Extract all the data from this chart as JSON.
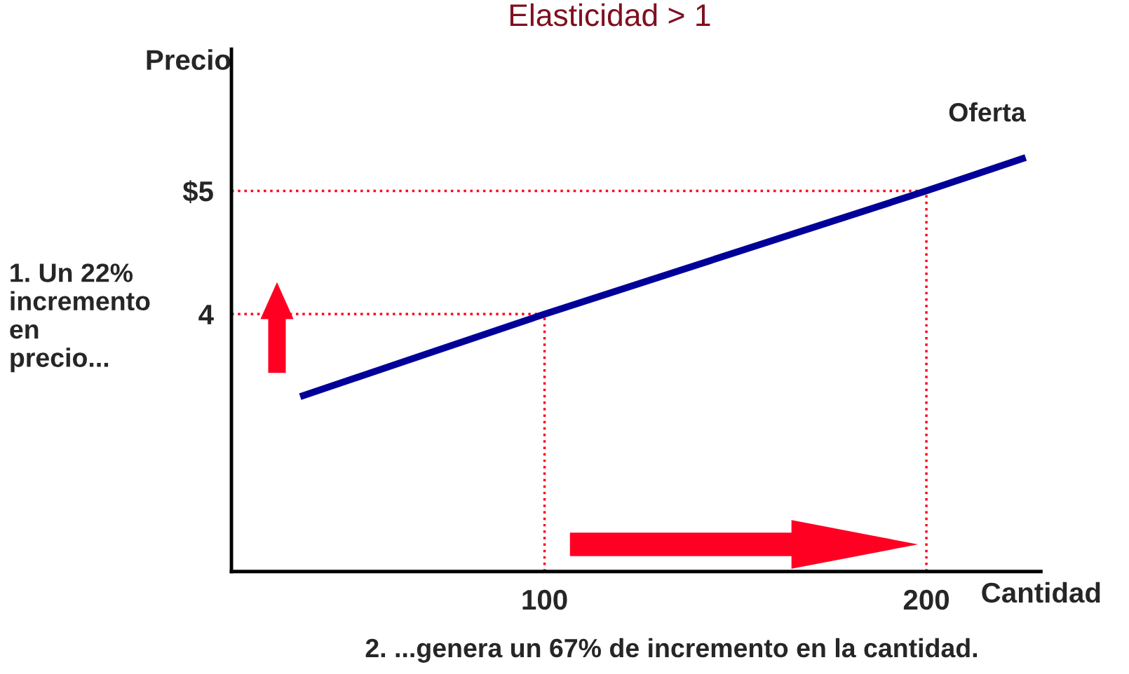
{
  "chart_data": {
    "type": "line",
    "title": "Elasticidad > 1",
    "xlabel": "Cantidad",
    "ylabel": "Precio",
    "x": [
      36,
      100,
      200,
      226
    ],
    "series": [
      {
        "name": "Oferta",
        "color": "#000099",
        "values": [
          3.33,
          4,
          5,
          5.27
        ]
      }
    ],
    "xlim": [
      18,
      230
    ],
    "ylim": [
      1.91,
      6.15
    ],
    "xticks": [
      100,
      200
    ],
    "yticks": [
      4,
      {
        "value": 5,
        "label": "$5"
      }
    ],
    "ref_lines": [
      {
        "axis": "y",
        "value": 4,
        "color": "#ff0022",
        "line_style": "dotted"
      },
      {
        "axis": "y",
        "value": 5,
        "color": "#ff0022",
        "line_style": "dotted"
      },
      {
        "axis": "x",
        "value": 100,
        "color": "#ff0022",
        "line_style": "dotted"
      },
      {
        "axis": "x",
        "value": 200,
        "color": "#ff0022",
        "line_style": "dotted"
      }
    ],
    "annotations": [
      "1. Un 22%\nincremento\nen\nprecio...",
      "2. ...genera un 67% de incremento en la cantidad."
    ],
    "grid": false,
    "marker": "none",
    "line_style": "solid"
  }
}
